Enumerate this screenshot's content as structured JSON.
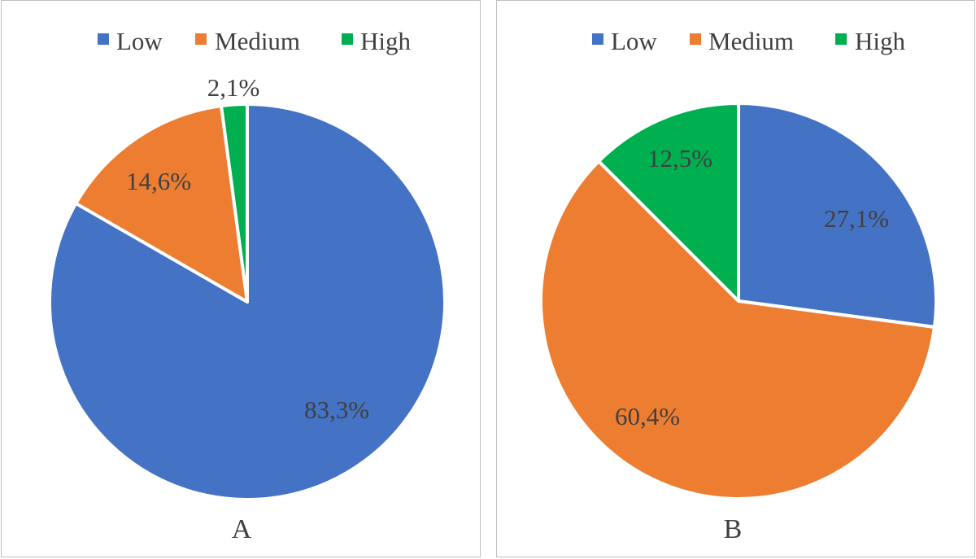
{
  "chart_data": [
    {
      "type": "pie",
      "caption": "A",
      "legend_position": "top",
      "categories": [
        "Low",
        "Medium",
        "High"
      ],
      "values": [
        83.3,
        14.6,
        2.1
      ],
      "labels": [
        "83,3%",
        "14,6%",
        "2,1%"
      ],
      "colors": [
        "#4472C4",
        "#ED7D31",
        "#00B050"
      ]
    },
    {
      "type": "pie",
      "caption": "B",
      "legend_position": "top",
      "categories": [
        "Low",
        "Medium",
        "High"
      ],
      "values": [
        27.1,
        60.4,
        12.5
      ],
      "labels": [
        "27,1%",
        "60,4%",
        "12,5%"
      ],
      "colors": [
        "#4472C4",
        "#ED7D31",
        "#00B050"
      ]
    }
  ]
}
